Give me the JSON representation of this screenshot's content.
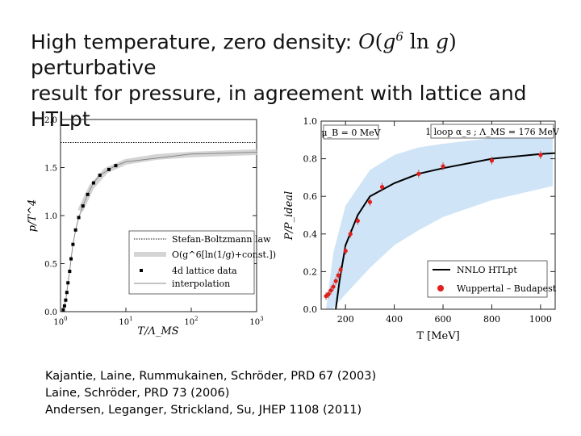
{
  "title": {
    "line1_pre": "High temperature, zero density: ",
    "math_O": "O",
    "math_g6": "g",
    "math_exp": "6",
    "math_ln": "ln",
    "math_g": "g",
    "line1_post": " perturbative",
    "line2": "result for pressure, in agreement with lattice and HTLpt"
  },
  "references": [
    "Kajantie, Laine, Rummukainen, Schröder, PRD 67 (2003)",
    "Laine, Schröder, PRD 73 (2006)",
    "Andersen, Leganger, Strickland, Su, JHEP 1108 (2011)"
  ],
  "chart_data": [
    {
      "type": "line",
      "title": "",
      "xlabel": "T/Λ_MS",
      "ylabel": "p/T^4",
      "xscale": "log",
      "xlim": [
        1,
        1000
      ],
      "ylim": [
        0,
        2.0
      ],
      "xticks": [
        "10^0",
        "10^1",
        "10^2",
        "10^3"
      ],
      "yticks": [
        "0.0",
        "0.5",
        "1.0",
        "1.5",
        "2.0"
      ],
      "stefan_boltzmann": 1.76,
      "legend": [
        "Stefan-Boltzmann law",
        "O(g^6[ln(1/g)+const.])",
        "4d lattice data",
        "interpolation"
      ],
      "legend_position": "bottom-right",
      "lattice_points": [
        {
          "x": 1.1,
          "y": 0.02
        },
        {
          "x": 1.15,
          "y": 0.06
        },
        {
          "x": 1.2,
          "y": 0.12
        },
        {
          "x": 1.25,
          "y": 0.2
        },
        {
          "x": 1.3,
          "y": 0.3
        },
        {
          "x": 1.38,
          "y": 0.42
        },
        {
          "x": 1.45,
          "y": 0.55
        },
        {
          "x": 1.55,
          "y": 0.7
        },
        {
          "x": 1.7,
          "y": 0.85
        },
        {
          "x": 1.9,
          "y": 0.98
        },
        {
          "x": 2.2,
          "y": 1.1
        },
        {
          "x": 2.6,
          "y": 1.22
        },
        {
          "x": 3.2,
          "y": 1.34
        },
        {
          "x": 4.0,
          "y": 1.42
        },
        {
          "x": 5.5,
          "y": 1.48
        },
        {
          "x": 7.0,
          "y": 1.52
        }
      ],
      "perturbative_curve": [
        {
          "x": 2,
          "y": 1.05
        },
        {
          "x": 3,
          "y": 1.3
        },
        {
          "x": 5,
          "y": 1.47
        },
        {
          "x": 10,
          "y": 1.56
        },
        {
          "x": 30,
          "y": 1.61
        },
        {
          "x": 100,
          "y": 1.635
        },
        {
          "x": 1000,
          "y": 1.66
        }
      ]
    },
    {
      "type": "line",
      "title": "",
      "xlabel": "T [MeV]",
      "ylabel": "P/P_ideal",
      "xlim": [
        100,
        1060
      ],
      "ylim": [
        0,
        1.0
      ],
      "xticks": [
        200,
        400,
        600,
        800,
        1000
      ],
      "yticks": [
        "0.0",
        "0.2",
        "0.4",
        "0.6",
        "0.8",
        "1.0"
      ],
      "annotation_left": "μ_B = 0 MeV",
      "annotation_right": "1 loop α_s ; Λ_MS = 176 MeV",
      "legend": [
        "NNLO HTLpt",
        "Wuppertal – Budapest"
      ],
      "legend_position": "bottom-right",
      "band_lower": [
        {
          "x": 145,
          "y": 0.0
        },
        {
          "x": 200,
          "y": 0.08
        },
        {
          "x": 300,
          "y": 0.22
        },
        {
          "x": 400,
          "y": 0.34
        },
        {
          "x": 500,
          "y": 0.42
        },
        {
          "x": 600,
          "y": 0.49
        },
        {
          "x": 800,
          "y": 0.58
        },
        {
          "x": 1000,
          "y": 0.64
        },
        {
          "x": 1050,
          "y": 0.655
        }
      ],
      "band_upper": [
        {
          "x": 120,
          "y": 0.0
        },
        {
          "x": 150,
          "y": 0.3
        },
        {
          "x": 200,
          "y": 0.55
        },
        {
          "x": 300,
          "y": 0.74
        },
        {
          "x": 400,
          "y": 0.82
        },
        {
          "x": 500,
          "y": 0.86
        },
        {
          "x": 600,
          "y": 0.88
        },
        {
          "x": 800,
          "y": 0.91
        },
        {
          "x": 1000,
          "y": 0.93
        },
        {
          "x": 1050,
          "y": 0.935
        }
      ],
      "htlpt_curve": [
        {
          "x": 160,
          "y": 0.0
        },
        {
          "x": 175,
          "y": 0.15
        },
        {
          "x": 200,
          "y": 0.34
        },
        {
          "x": 250,
          "y": 0.5
        },
        {
          "x": 300,
          "y": 0.6
        },
        {
          "x": 400,
          "y": 0.67
        },
        {
          "x": 500,
          "y": 0.72
        },
        {
          "x": 600,
          "y": 0.75
        },
        {
          "x": 800,
          "y": 0.8
        },
        {
          "x": 1000,
          "y": 0.825
        },
        {
          "x": 1060,
          "y": 0.83
        }
      ],
      "wb_points": [
        {
          "x": 120,
          "y": 0.07
        },
        {
          "x": 130,
          "y": 0.08
        },
        {
          "x": 140,
          "y": 0.1
        },
        {
          "x": 150,
          "y": 0.12
        },
        {
          "x": 160,
          "y": 0.15
        },
        {
          "x": 170,
          "y": 0.18
        },
        {
          "x": 180,
          "y": 0.21
        },
        {
          "x": 200,
          "y": 0.31
        },
        {
          "x": 220,
          "y": 0.4
        },
        {
          "x": 250,
          "y": 0.47
        },
        {
          "x": 300,
          "y": 0.57
        },
        {
          "x": 350,
          "y": 0.65
        },
        {
          "x": 500,
          "y": 0.72
        },
        {
          "x": 600,
          "y": 0.76
        },
        {
          "x": 800,
          "y": 0.79
        },
        {
          "x": 1000,
          "y": 0.82
        }
      ]
    }
  ]
}
